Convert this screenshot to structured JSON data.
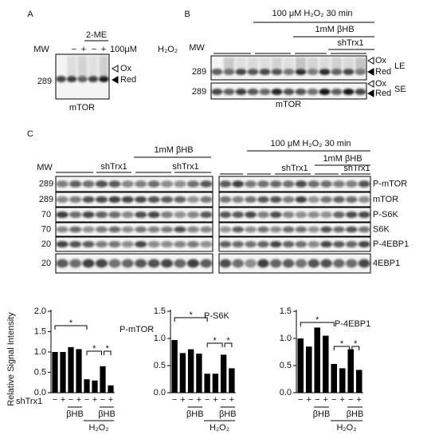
{
  "panel_a": {
    "label": "A",
    "reagent": "2-ME",
    "mw": "MW",
    "signs": [
      "−",
      "+",
      "−",
      "+"
    ],
    "dose": "100μM",
    "treatment": "H₂O₂",
    "ox": "Ox",
    "red": "Red",
    "mw_marker": "289",
    "protein": "mTOR"
  },
  "panel_b": {
    "label": "B",
    "treatment": "100 μM H₂O₂ 30 min",
    "bhb": "1mM βHB",
    "shtrx": "shTrx1",
    "mw": "MW",
    "le": {
      "ox": "Ox",
      "red": "Red",
      "exposure": "LE",
      "mw_marker": "289"
    },
    "se": {
      "ox": "Ox",
      "red": "Red",
      "exposure": "SE",
      "mw_marker": "289"
    },
    "protein": "mTOR"
  },
  "panel_c": {
    "label": "C",
    "mw": "MW",
    "left": {
      "bhb": "1mM βHB",
      "shtrx": [
        "shTrx1",
        "shTrx1"
      ]
    },
    "right": {
      "treatment": "100 μM H₂O₂ 30 min",
      "bhb": "1mM βHB",
      "shtrx": [
        "shTrx1",
        "shTrx1"
      ]
    },
    "rows": [
      {
        "mw_marker": "289",
        "protein": "P-mTOR"
      },
      {
        "mw_marker": "289",
        "protein": "mTOR"
      },
      {
        "mw_marker": "70",
        "protein": "P-S6K"
      },
      {
        "mw_marker": "70",
        "protein": "S6K"
      },
      {
        "mw_marker": "20",
        "protein": "P-4EBP1"
      },
      {
        "mw_marker": "20",
        "protein": "4EBP1"
      }
    ]
  },
  "chart_data": [
    {
      "type": "bar",
      "title": "P-mTOR",
      "ylabel": "Relative Signal Intensity",
      "row_label": "shTrx1",
      "categories": [
        "−",
        "+",
        "−",
        "+",
        "−",
        "+",
        "−",
        "+"
      ],
      "values": [
        1.0,
        1.0,
        1.12,
        1.07,
        0.33,
        0.3,
        0.65,
        0.18
      ],
      "color": "#000000",
      "ylim": [
        0,
        2.0
      ],
      "yticks": [
        {
          "value": 0,
          "label": "0.0"
        },
        0.5,
        {
          "value": 1.0,
          "label": "1.0"
        },
        1.5,
        {
          "value": 2.0,
          "label": "2.0"
        }
      ],
      "group_labels": [
        "βHB",
        "βHB"
      ],
      "treatment_label": "H₂O₂",
      "annotations": [
        "*",
        "*",
        "*"
      ]
    },
    {
      "type": "bar",
      "title": "P-S6K",
      "categories": [
        "−",
        "+",
        "−",
        "+",
        "−",
        "+",
        "−",
        "+"
      ],
      "values": [
        0.97,
        0.73,
        0.8,
        0.72,
        0.35,
        0.35,
        0.7,
        0.45
      ],
      "color": "#000000",
      "ylim": [
        0,
        1.5
      ],
      "yticks": [
        {
          "value": 0,
          "label": "0.0"
        },
        0.5,
        {
          "value": 1.0,
          "label": "1.0"
        },
        1.5
      ],
      "group_labels": [
        "βHB",
        "βHB"
      ],
      "treatment_label": "H₂O₂",
      "annotations": [
        "*",
        "*",
        "*"
      ]
    },
    {
      "type": "bar",
      "title": "P-4EBP1",
      "categories": [
        "−",
        "+",
        "−",
        "+",
        "−",
        "+",
        "−",
        "+"
      ],
      "values": [
        1.0,
        0.85,
        1.2,
        1.05,
        0.53,
        0.45,
        0.8,
        0.42
      ],
      "color": "#000000",
      "ylim": [
        0,
        1.5
      ],
      "yticks": [
        {
          "value": 0,
          "label": "0.0"
        },
        0.5,
        {
          "value": 1.0,
          "label": "1.0"
        },
        1.5
      ],
      "group_labels": [
        "βHB",
        "βHB"
      ],
      "treatment_label": "H₂O₂",
      "annotations": [
        "*",
        "*",
        "*"
      ]
    }
  ]
}
